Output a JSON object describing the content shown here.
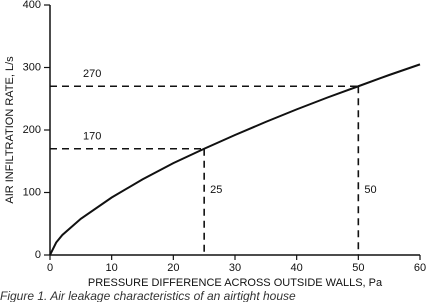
{
  "chart_data": {
    "type": "line",
    "caption": "Figure 1. Air leakage characteristics of an airtight house",
    "x_label": "PRESSURE DIFFERENCE ACROSS OUTSIDE WALLS, Pa",
    "y_label": "AIR INFILTRATION RATE, L/s",
    "x": [
      0,
      1,
      2,
      5,
      10,
      15,
      20,
      25,
      30,
      35,
      40,
      45,
      50,
      55,
      60
    ],
    "series": [
      {
        "color": "#111111",
        "values": [
          0,
          20,
          32,
          58,
          92,
          121,
          147,
          170,
          192,
          213,
          233,
          252,
          270,
          288,
          305
        ]
      }
    ],
    "reference_points": [
      {
        "x": 25,
        "y": 170
      },
      {
        "x": 50,
        "y": 270
      }
    ],
    "xlim": [
      0,
      60
    ],
    "xticks": [
      0,
      10,
      20,
      30,
      40,
      50,
      60
    ],
    "ylim": [
      0,
      400
    ],
    "yticks": [
      0,
      100,
      200,
      300,
      400
    ]
  }
}
